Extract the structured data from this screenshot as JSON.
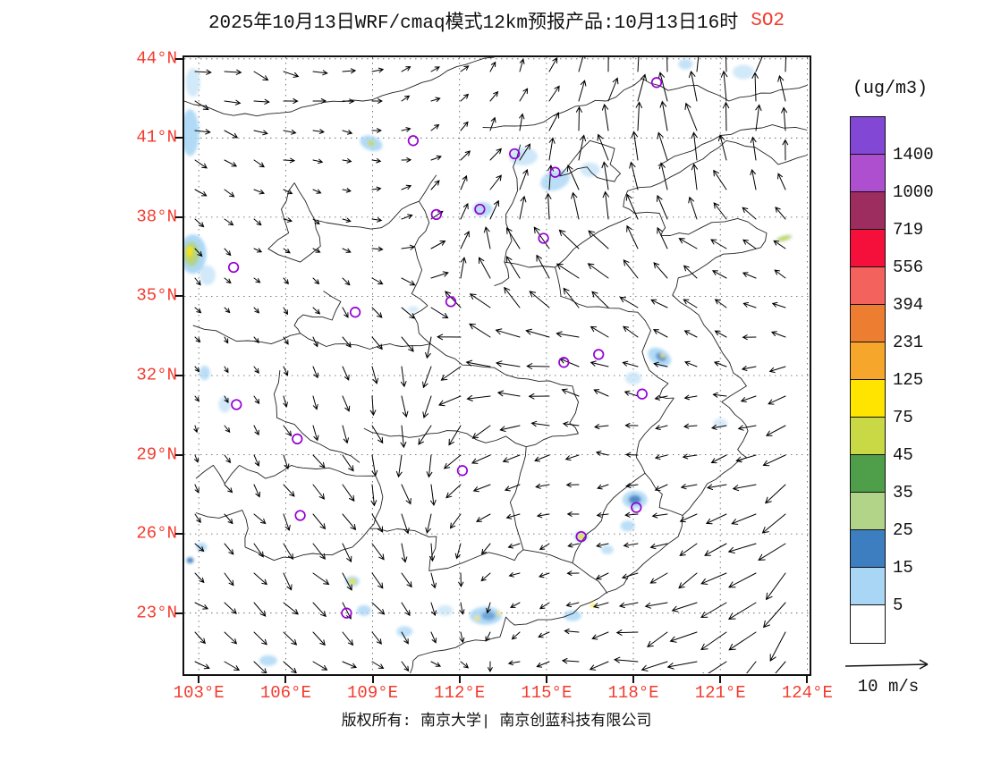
{
  "title": {
    "text": "2025年10月13日WRF/cmaq模式12km预报产品:10月13日16时",
    "pollutant": "SO2",
    "pollutant_color": "#F23B2E"
  },
  "colorbar": {
    "units_label": "(ug/m3)",
    "levels_top_to_bottom": [
      "1400",
      "1000",
      "719",
      "556",
      "394",
      "231",
      "125",
      "75",
      "45",
      "35",
      "25",
      "15",
      "5"
    ],
    "segment_colors_top_to_bottom": [
      "#8247D5",
      "#AE4FD0",
      "#9C2D5E",
      "#F5103C",
      "#F4625D",
      "#ED7D31",
      "#F5A62B",
      "#FFE400",
      "#C9D845",
      "#4F9E49",
      "#B2D489",
      "#3C7EC0",
      "#A9D6F5",
      "#FFFFFF"
    ]
  },
  "axes": {
    "label_color": "#F23B2E",
    "lat_ticks": [
      {
        "label": "44°N",
        "value": 44
      },
      {
        "label": "41°N",
        "value": 41
      },
      {
        "label": "38°N",
        "value": 38
      },
      {
        "label": "35°N",
        "value": 35
      },
      {
        "label": "32°N",
        "value": 32
      },
      {
        "label": "29°N",
        "value": 29
      },
      {
        "label": "26°N",
        "value": 26
      },
      {
        "label": "23°N",
        "value": 23
      }
    ],
    "lon_ticks": [
      {
        "label": "103°E",
        "value": 103
      },
      {
        "label": "106°E",
        "value": 106
      },
      {
        "label": "109°E",
        "value": 109
      },
      {
        "label": "112°E",
        "value": 112
      },
      {
        "label": "115°E",
        "value": 115
      },
      {
        "label": "118°E",
        "value": 118
      },
      {
        "label": "121°E",
        "value": 121
      },
      {
        "label": "124°E",
        "value": 124
      }
    ]
  },
  "wind_legend": {
    "label": "10 m/s"
  },
  "footer": {
    "text": "版权所有: 南京大学| 南京创蓝科技有限公司"
  },
  "map": {
    "lon_range": [
      102.5,
      124.05
    ],
    "lat_range": [
      20.72,
      44.06
    ],
    "marker_color": "#9400D3",
    "city_markers": [
      [
        118.8,
        43.1
      ],
      [
        113.9,
        40.4
      ],
      [
        110.4,
        40.9
      ],
      [
        115.3,
        39.7
      ],
      [
        112.7,
        38.3
      ],
      [
        111.2,
        38.1
      ],
      [
        114.9,
        37.2
      ],
      [
        104.2,
        36.1
      ],
      [
        108.4,
        34.4
      ],
      [
        111.7,
        34.8
      ],
      [
        115.6,
        32.5
      ],
      [
        116.8,
        32.8
      ],
      [
        118.3,
        31.3
      ],
      [
        104.3,
        30.9
      ],
      [
        106.4,
        29.6
      ],
      [
        112.1,
        28.4
      ],
      [
        106.5,
        26.7
      ],
      [
        118.1,
        27.0
      ],
      [
        116.2,
        25.9
      ],
      [
        108.1,
        23.0
      ]
    ],
    "so2_patches": [
      [
        102.7,
        41.2,
        10,
        26,
        0,
        "#A9D6F5",
        0.9
      ],
      [
        102.8,
        43.1,
        8,
        16,
        0,
        "#C7E3F7",
        0.8
      ],
      [
        121.8,
        43.5,
        12,
        8,
        0,
        "#C7E3F7",
        0.8
      ],
      [
        119.8,
        43.8,
        8,
        6,
        0,
        "#A9D6F5",
        0.7
      ],
      [
        108.95,
        40.8,
        13,
        8,
        20,
        "#A9D6F5",
        0.9
      ],
      [
        108.95,
        40.8,
        4,
        3,
        20,
        "#C9D845",
        0.95
      ],
      [
        114.2,
        40.3,
        16,
        10,
        0,
        "#C7E3F7",
        0.85
      ],
      [
        115.3,
        39.4,
        17,
        11,
        -20,
        "#A9D6F5",
        0.8
      ],
      [
        116.5,
        39.8,
        11,
        8,
        0,
        "#C7E3F7",
        0.8
      ],
      [
        112.8,
        38.3,
        11,
        8,
        0,
        "#A9D6F5",
        0.85
      ],
      [
        102.8,
        36.6,
        15,
        22,
        0,
        "#A9D6F5",
        0.95
      ],
      [
        102.75,
        36.6,
        9,
        14,
        0,
        "#B2D489",
        0.95
      ],
      [
        102.7,
        36.65,
        5,
        9,
        0,
        "#C9D845",
        0.95
      ],
      [
        102.68,
        36.7,
        3,
        5,
        0,
        "#FFE400",
        0.95
      ],
      [
        103.3,
        35.8,
        9,
        11,
        0,
        "#C7E3F7",
        0.8
      ],
      [
        110.4,
        34.5,
        6,
        4,
        0,
        "#C7E3F7",
        0.7
      ],
      [
        103.2,
        32.1,
        6,
        8,
        0,
        "#A9D6F5",
        0.8
      ],
      [
        103.9,
        30.9,
        7,
        9,
        0,
        "#C7E3F7",
        0.8
      ],
      [
        118.9,
        32.7,
        14,
        9,
        30,
        "#A9D6F5",
        0.9
      ],
      [
        118.95,
        32.7,
        6,
        4,
        30,
        "#3C7EC0",
        0.85
      ],
      [
        119.0,
        32.75,
        2.5,
        2,
        0,
        "#FFE400",
        0.95
      ],
      [
        118.0,
        31.9,
        9,
        7,
        0,
        "#C7E3F7",
        0.8
      ],
      [
        121.0,
        30.2,
        8,
        5,
        0,
        "#C7E3F7",
        0.7
      ],
      [
        123.2,
        37.2,
        9,
        3,
        -15,
        "#B2D489",
        0.9
      ],
      [
        123.2,
        37.2,
        4,
        1.8,
        -15,
        "#C9D845",
        0.95
      ],
      [
        118.05,
        27.3,
        14,
        10,
        0,
        "#A9D6F5",
        0.85
      ],
      [
        118.05,
        27.3,
        7,
        5,
        0,
        "#3C7EC0",
        0.85
      ],
      [
        117.8,
        26.3,
        8,
        6,
        0,
        "#A9D6F5",
        0.8
      ],
      [
        117.1,
        25.4,
        7,
        5,
        0,
        "#A9D6F5",
        0.7
      ],
      [
        116.2,
        25.9,
        8,
        6,
        0,
        "#A9D6F5",
        0.7
      ],
      [
        116.2,
        25.9,
        4.5,
        3.5,
        0,
        "#C9D845",
        0.9
      ],
      [
        116.2,
        25.9,
        2.5,
        2,
        0,
        "#FFE400",
        0.95
      ],
      [
        115.9,
        22.9,
        10,
        6,
        0,
        "#A9D6F5",
        0.8
      ],
      [
        116.6,
        23.3,
        2.5,
        2,
        0,
        "#FFE400",
        0.9
      ],
      [
        112.9,
        22.9,
        18,
        10,
        0,
        "#A9D6F5",
        0.9
      ],
      [
        113.0,
        22.9,
        8,
        5,
        0,
        "#3C7EC0",
        0.55
      ],
      [
        112.6,
        22.8,
        3,
        2.5,
        0,
        "#FFE400",
        0.95
      ],
      [
        113.35,
        23.0,
        2.5,
        2,
        0,
        "#FFE400",
        0.9
      ],
      [
        108.3,
        24.2,
        8,
        6,
        0,
        "#A9D6F5",
        0.8
      ],
      [
        108.3,
        24.2,
        4.5,
        3.5,
        0,
        "#C9D845",
        0.9
      ],
      [
        108.3,
        24.2,
        2.5,
        2,
        0,
        "#FFE400",
        0.95
      ],
      [
        108.7,
        23.1,
        8,
        6,
        0,
        "#A9D6F5",
        0.8
      ],
      [
        110.1,
        22.3,
        9,
        6,
        0,
        "#A9D6F5",
        0.75
      ],
      [
        111.5,
        23.1,
        9,
        6,
        0,
        "#C7E3F7",
        0.75
      ],
      [
        105.4,
        21.2,
        10,
        6,
        0,
        "#A9D6F5",
        0.8
      ],
      [
        103.1,
        25.5,
        6,
        5,
        0,
        "#A9D6F5",
        0.85
      ],
      [
        102.7,
        25.0,
        4,
        3.5,
        0,
        "#3C7EC0",
        0.9
      ]
    ]
  }
}
